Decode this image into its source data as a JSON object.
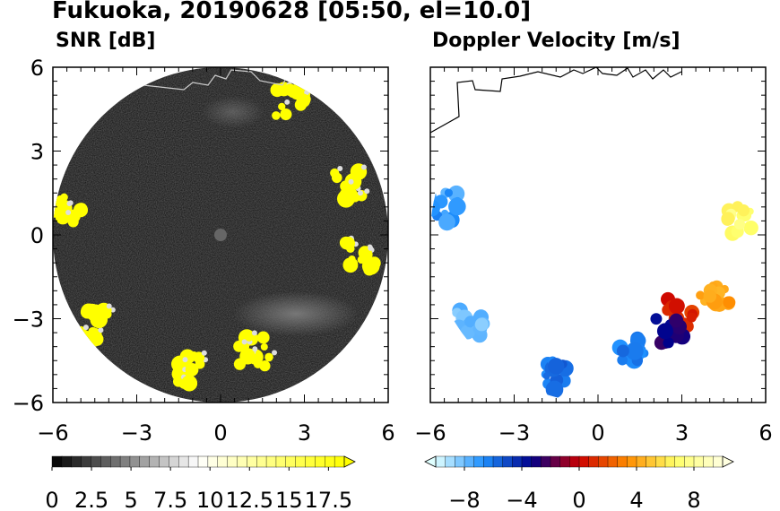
{
  "title": "Fukuoka, 20190628 [05:50, el=10.0]",
  "chart_data": [
    {
      "type": "heatmap",
      "title": "SNR [dB]",
      "xlim": [
        -6,
        6
      ],
      "ylim": [
        -6,
        6
      ],
      "x_ticks": [
        "-6",
        "-3",
        "0",
        "3",
        "6"
      ],
      "y_ticks": [
        "6",
        "3",
        "0",
        "-3",
        "-6"
      ],
      "colorbar": {
        "range": [
          0,
          18.5
        ],
        "tick_labels": [
          "0",
          "2.5",
          "5",
          "7.5",
          "10",
          "12.5",
          "15",
          "17.5"
        ],
        "colors": [
          "#000000",
          "#ffffff",
          "#ffff00"
        ]
      },
      "echo_regions": [
        {
          "x": 4.6,
          "y": 1.8,
          "value": 18.5
        },
        {
          "x": 5.0,
          "y": -0.8,
          "value": 18.5
        },
        {
          "x": 2.5,
          "y": 4.8,
          "value": 18.5
        },
        {
          "x": 1.2,
          "y": -4.2,
          "value": 18.5
        },
        {
          "x": -1.0,
          "y": -4.8,
          "value": 18.5
        },
        {
          "x": -4.5,
          "y": -3.2,
          "value": 18.5
        },
        {
          "x": -5.5,
          "y": 1.0,
          "value": 18.5
        }
      ]
    },
    {
      "type": "heatmap",
      "title": "Doppler Velocity [m/s]",
      "xlim": [
        -6,
        6
      ],
      "ylim": [
        -6,
        6
      ],
      "x_ticks": [
        "-6",
        "-3",
        "0",
        "3",
        "6"
      ],
      "y_ticks": [
        "6",
        "3",
        "0",
        "-3",
        "-6"
      ],
      "colorbar": {
        "range": [
          -10,
          10
        ],
        "tick_labels": [
          "-8",
          "-4",
          "0",
          "4",
          "8"
        ],
        "colors": [
          "#e0ffff",
          "#1e90ff",
          "#00008b",
          "#cc0000",
          "#ff8c00",
          "#ffff66",
          "#ffffe0"
        ]
      },
      "echo_regions": [
        {
          "x": 5.1,
          "y": 0.5,
          "value": 7
        },
        {
          "x": 4.2,
          "y": -2.2,
          "value": 4
        },
        {
          "x": 3.0,
          "y": -2.8,
          "value": 1
        },
        {
          "x": 2.5,
          "y": -3.5,
          "value": -3
        },
        {
          "x": 1.2,
          "y": -4.0,
          "value": -6
        },
        {
          "x": -1.5,
          "y": -5.0,
          "value": -6
        },
        {
          "x": -4.5,
          "y": -3.2,
          "value": -8
        },
        {
          "x": -5.5,
          "y": 1.0,
          "value": -7
        }
      ]
    }
  ]
}
